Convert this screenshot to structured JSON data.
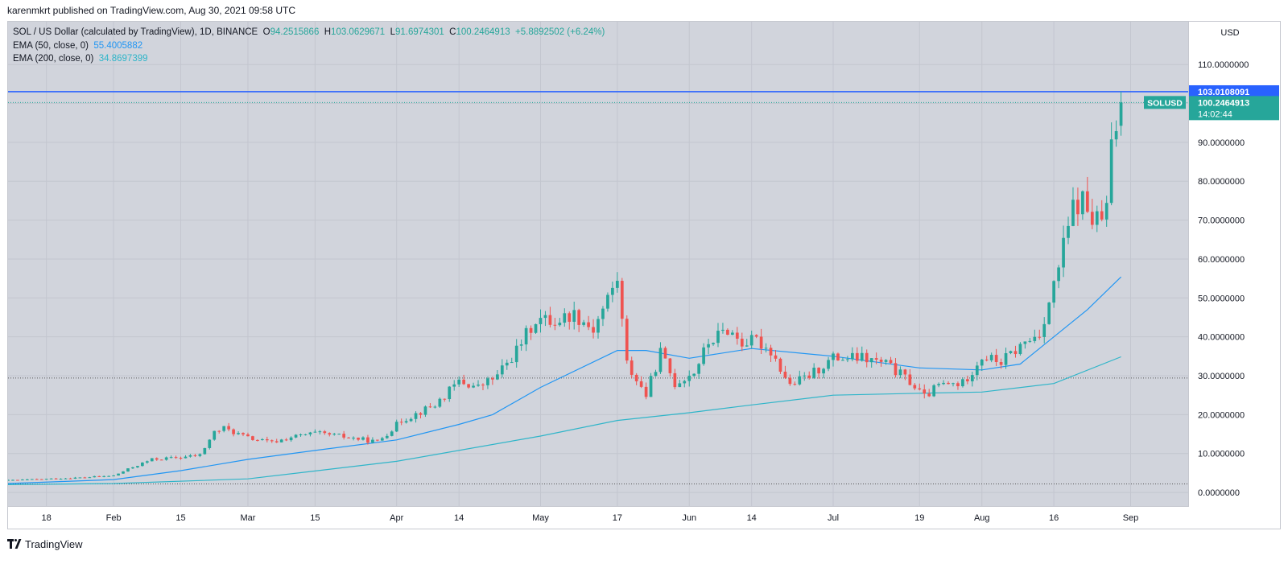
{
  "header": {
    "published": "karenmkrt published on TradingView.com, Aug 30, 2021 09:58 UTC"
  },
  "legend": {
    "symbol": "SOL / US Dollar (calculated by TradingView), 1D, BINANCE",
    "o_label": "O",
    "o_value": "94.2515866",
    "h_label": "H",
    "h_value": "103.0629671",
    "l_label": "L",
    "l_value": "91.6974301",
    "c_label": "C",
    "c_value": "100.2464913",
    "change": "+5.8892502 (+6.24%)",
    "ema50_label": "EMA (50, close, 0)",
    "ema50_value": "55.4005882",
    "ema200_label": "EMA (200, close, 0)",
    "ema200_value": "34.8697399"
  },
  "footer": {
    "brand": "TradingView"
  },
  "colors": {
    "up": "#26a69a",
    "down": "#ef5350",
    "ema50": "#2196f3",
    "ema200": "#2fb5c9",
    "hline": "#2962ff",
    "price_tag": "#26a69a",
    "background": "#d1d4dc"
  },
  "chart_data": {
    "type": "candlestick",
    "currency": "USD",
    "ylim": [
      -3.5,
      121
    ],
    "yticks": [
      0,
      10,
      20,
      30,
      40,
      50,
      60,
      70,
      80,
      90,
      100,
      110
    ],
    "ytick_labels": [
      "0.0000000",
      "10.0000000",
      "20.0000000",
      "30.0000000",
      "40.0000000",
      "50.0000000",
      "60.0000000",
      "70.0000000",
      "80.0000000",
      "90.0000000",
      "100.0000000",
      "110.0000000"
    ],
    "xrange": [
      "2021-01-10",
      "2021-09-13"
    ],
    "xticks": [
      {
        "date": "2021-01-18",
        "label": "18"
      },
      {
        "date": "2021-02-01",
        "label": "Feb"
      },
      {
        "date": "2021-02-15",
        "label": "15"
      },
      {
        "date": "2021-03-01",
        "label": "Mar"
      },
      {
        "date": "2021-03-15",
        "label": "15"
      },
      {
        "date": "2021-04-01",
        "label": "Apr"
      },
      {
        "date": "2021-04-14",
        "label": "14"
      },
      {
        "date": "2021-05-01",
        "label": "May"
      },
      {
        "date": "2021-05-17",
        "label": "17"
      },
      {
        "date": "2021-06-01",
        "label": "Jun"
      },
      {
        "date": "2021-06-14",
        "label": "14"
      },
      {
        "date": "2021-07-01",
        "label": "Jul"
      },
      {
        "date": "2021-07-19",
        "label": "19"
      },
      {
        "date": "2021-08-01",
        "label": "Aug"
      },
      {
        "date": "2021-08-16",
        "label": "16"
      },
      {
        "date": "2021-09-01",
        "label": "Sep"
      }
    ],
    "close_anchors": [
      [
        "2021-01-10",
        3.1
      ],
      [
        "2021-01-17",
        3.4
      ],
      [
        "2021-01-25",
        3.8
      ],
      [
        "2021-02-01",
        4.3
      ],
      [
        "2021-02-05",
        6.5
      ],
      [
        "2021-02-09",
        8.5
      ],
      [
        "2021-02-15",
        9.0
      ],
      [
        "2021-02-19",
        9.6
      ],
      [
        "2021-02-22",
        15.5
      ],
      [
        "2021-02-24",
        16.5
      ],
      [
        "2021-03-01",
        14.0
      ],
      [
        "2021-03-06",
        12.8
      ],
      [
        "2021-03-10",
        14.2
      ],
      [
        "2021-03-15",
        15.2
      ],
      [
        "2021-03-20",
        14.5
      ],
      [
        "2021-03-28",
        13.0
      ],
      [
        "2021-04-02",
        18.5
      ],
      [
        "2021-04-09",
        22.5
      ],
      [
        "2021-04-14",
        28.5
      ],
      [
        "2021-04-18",
        27.0
      ],
      [
        "2021-04-22",
        30.0
      ],
      [
        "2021-04-26",
        36.5
      ],
      [
        "2021-04-30",
        44.5
      ],
      [
        "2021-05-04",
        44.0
      ],
      [
        "2021-05-08",
        46.0
      ],
      [
        "2021-05-12",
        42.0
      ],
      [
        "2021-05-17",
        55.0
      ],
      [
        "2021-05-19",
        33.0
      ],
      [
        "2021-05-23",
        25.0
      ],
      [
        "2021-05-26",
        36.0
      ],
      [
        "2021-05-29",
        28.0
      ],
      [
        "2021-06-02",
        31.0
      ],
      [
        "2021-06-05",
        38.5
      ],
      [
        "2021-06-09",
        42.0
      ],
      [
        "2021-06-12",
        38.5
      ],
      [
        "2021-06-15",
        39.0
      ],
      [
        "2021-06-18",
        36.5
      ],
      [
        "2021-06-22",
        27.5
      ],
      [
        "2021-06-26",
        30.0
      ],
      [
        "2021-07-01",
        34.5
      ],
      [
        "2021-07-07",
        34.5
      ],
      [
        "2021-07-12",
        33.0
      ],
      [
        "2021-07-17",
        28.5
      ],
      [
        "2021-07-20",
        24.5
      ],
      [
        "2021-07-23",
        27.5
      ],
      [
        "2021-07-28",
        28.0
      ],
      [
        "2021-08-01",
        35.0
      ],
      [
        "2021-08-05",
        33.5
      ],
      [
        "2021-08-09",
        37.5
      ],
      [
        "2021-08-13",
        41.0
      ],
      [
        "2021-08-16",
        53.0
      ],
      [
        "2021-08-18",
        63.0
      ],
      [
        "2021-08-20",
        73.0
      ],
      [
        "2021-08-22",
        75.0
      ],
      [
        "2021-08-24",
        70.0
      ],
      [
        "2021-08-26",
        70.0
      ],
      [
        "2021-08-27",
        73.0
      ],
      [
        "2021-08-28",
        88.0
      ],
      [
        "2021-08-29",
        94.25
      ],
      [
        "2021-08-30",
        100.25
      ]
    ],
    "series": [
      {
        "name": "EMA (50, close, 0)",
        "color": "#2196f3",
        "points": [
          [
            "2021-01-10",
            2.3
          ],
          [
            "2021-02-01",
            3.3
          ],
          [
            "2021-02-15",
            5.6
          ],
          [
            "2021-03-01",
            8.5
          ],
          [
            "2021-03-15",
            10.8
          ],
          [
            "2021-04-01",
            13.5
          ],
          [
            "2021-04-14",
            17.5
          ],
          [
            "2021-04-21",
            20.0
          ],
          [
            "2021-05-01",
            27.0
          ],
          [
            "2021-05-17",
            36.5
          ],
          [
            "2021-05-23",
            36.5
          ],
          [
            "2021-06-01",
            34.5
          ],
          [
            "2021-06-14",
            37.0
          ],
          [
            "2021-07-01",
            35.0
          ],
          [
            "2021-07-19",
            32.0
          ],
          [
            "2021-08-01",
            31.5
          ],
          [
            "2021-08-09",
            33.0
          ],
          [
            "2021-08-16",
            40.0
          ],
          [
            "2021-08-23",
            47.0
          ],
          [
            "2021-08-30",
            55.4
          ]
        ]
      },
      {
        "name": "EMA (200, close, 0)",
        "color": "#2fb5c9",
        "points": [
          [
            "2021-01-10",
            2.0
          ],
          [
            "2021-02-01",
            2.3
          ],
          [
            "2021-03-01",
            3.5
          ],
          [
            "2021-04-01",
            8.0
          ],
          [
            "2021-05-01",
            14.5
          ],
          [
            "2021-05-17",
            18.5
          ],
          [
            "2021-06-01",
            20.5
          ],
          [
            "2021-06-14",
            22.5
          ],
          [
            "2021-07-01",
            25.0
          ],
          [
            "2021-07-19",
            25.5
          ],
          [
            "2021-08-01",
            25.8
          ],
          [
            "2021-08-16",
            28.0
          ],
          [
            "2021-08-30",
            34.87
          ]
        ]
      }
    ],
    "hlines": [
      {
        "value": 103.0108091,
        "label": "103.0108091",
        "style": "solid",
        "color": "#2962ff"
      },
      {
        "value": 100.2464913,
        "style": "dotted",
        "color": "#26a69a"
      },
      {
        "value": 29.4,
        "style": "dotted",
        "color": "#555555"
      },
      {
        "value": 2.2,
        "style": "dotted",
        "color": "#555555"
      }
    ],
    "price_tag": {
      "symbol": "SOLUSD",
      "value": "100.2464913",
      "countdown": "14:02:44"
    }
  }
}
